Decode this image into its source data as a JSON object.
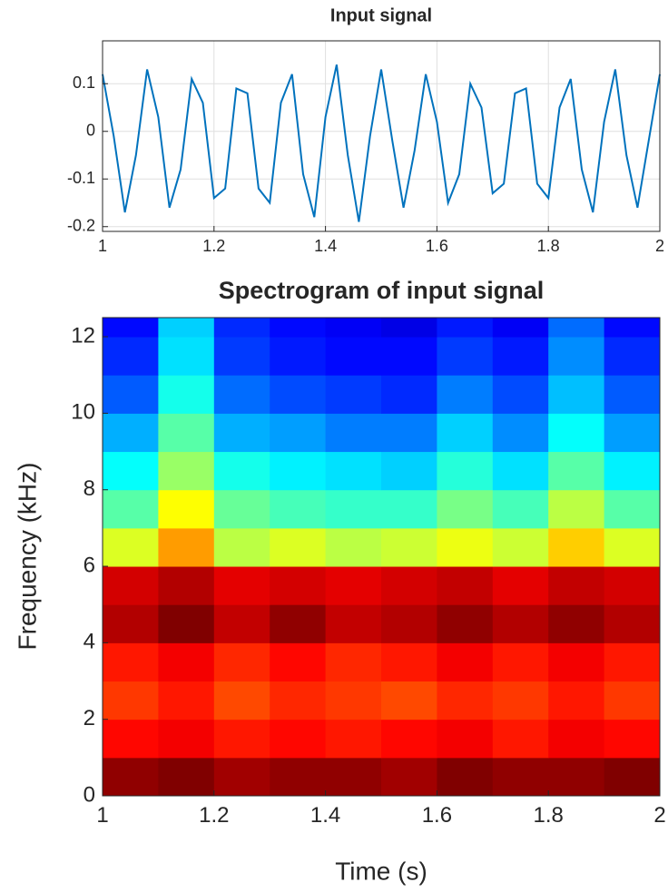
{
  "chart_data": [
    {
      "type": "line",
      "title": "Input signal",
      "x": [
        1,
        1.02,
        1.04,
        1.06,
        1.08,
        1.1,
        1.12,
        1.14,
        1.16,
        1.18,
        1.2,
        1.22,
        1.24,
        1.26,
        1.28,
        1.3,
        1.32,
        1.34,
        1.36,
        1.38,
        1.4,
        1.42,
        1.44,
        1.46,
        1.48,
        1.5,
        1.52,
        1.54,
        1.56,
        1.58,
        1.6,
        1.62,
        1.64,
        1.66,
        1.68,
        1.7,
        1.72,
        1.74,
        1.76,
        1.78,
        1.8,
        1.82,
        1.84,
        1.86,
        1.88,
        1.9,
        1.92,
        1.94,
        1.96,
        1.98,
        2
      ],
      "values": [
        0.12,
        -0.01,
        -0.17,
        -0.05,
        0.13,
        0.03,
        -0.16,
        -0.08,
        0.11,
        0.06,
        -0.14,
        -0.12,
        0.09,
        0.08,
        -0.12,
        -0.15,
        0.06,
        0.12,
        -0.09,
        -0.18,
        0.03,
        0.14,
        -0.05,
        -0.19,
        -0.01,
        0.13,
        -0.02,
        -0.16,
        -0.04,
        0.12,
        0.02,
        -0.15,
        -0.09,
        0.1,
        0.05,
        -0.13,
        -0.11,
        0.08,
        0.09,
        -0.11,
        -0.14,
        0.05,
        0.11,
        -0.08,
        -0.17,
        0.02,
        0.13,
        -0.05,
        -0.16,
        -0.02,
        0.12
      ],
      "color": "#0072bd",
      "xlim": [
        1,
        2
      ],
      "xticks": [
        1,
        1.2,
        1.4,
        1.6,
        1.8,
        2
      ],
      "ylim": [
        -0.21,
        0.19
      ],
      "yticks": [
        -0.2,
        -0.1,
        0,
        0.1
      ],
      "grid": true
    },
    {
      "type": "heatmap",
      "title": "Spectrogram of input signal",
      "xlabel": "Time (s)",
      "ylabel": "Frequency (kHz)",
      "colormap": "jet",
      "xbins": [
        1,
        1.1,
        1.2,
        1.3,
        1.4,
        1.5,
        1.6,
        1.7,
        1.8,
        1.9,
        2
      ],
      "ybins": [
        0,
        1,
        2,
        3,
        4,
        5,
        6,
        7,
        8,
        9,
        10,
        11,
        12,
        12.5
      ],
      "z": [
        [
          0.92,
          0.93,
          0.91,
          0.92,
          0.92,
          0.91,
          0.93,
          0.92,
          0.92,
          0.93
        ],
        [
          0.85,
          0.86,
          0.84,
          0.85,
          0.84,
          0.85,
          0.86,
          0.84,
          0.86,
          0.85
        ],
        [
          0.82,
          0.84,
          0.81,
          0.83,
          0.82,
          0.81,
          0.83,
          0.82,
          0.84,
          0.82
        ],
        [
          0.84,
          0.86,
          0.83,
          0.85,
          0.83,
          0.84,
          0.86,
          0.84,
          0.86,
          0.84
        ],
        [
          0.9,
          0.93,
          0.89,
          0.92,
          0.89,
          0.9,
          0.92,
          0.9,
          0.92,
          0.9
        ],
        [
          0.88,
          0.9,
          0.87,
          0.88,
          0.87,
          0.88,
          0.89,
          0.87,
          0.89,
          0.88
        ],
        [
          0.68,
          0.76,
          0.66,
          0.68,
          0.66,
          0.67,
          0.69,
          0.67,
          0.73,
          0.68
        ],
        [
          0.6,
          0.7,
          0.61,
          0.59,
          0.58,
          0.58,
          0.62,
          0.59,
          0.66,
          0.6
        ],
        [
          0.55,
          0.64,
          0.56,
          0.54,
          0.53,
          0.52,
          0.57,
          0.53,
          0.6,
          0.54
        ],
        [
          0.5,
          0.6,
          0.5,
          0.49,
          0.47,
          0.47,
          0.52,
          0.48,
          0.55,
          0.49
        ],
        [
          0.45,
          0.56,
          0.46,
          0.44,
          0.43,
          0.42,
          0.47,
          0.44,
          0.51,
          0.45
        ],
        [
          0.42,
          0.53,
          0.43,
          0.41,
          0.4,
          0.4,
          0.43,
          0.41,
          0.48,
          0.42
        ],
        [
          0.4,
          0.52,
          0.42,
          0.4,
          0.39,
          0.38,
          0.41,
          0.39,
          0.46,
          0.4
        ]
      ],
      "xlim": [
        1,
        2
      ],
      "xticks": [
        1,
        1.2,
        1.4,
        1.6,
        1.8,
        2
      ],
      "ylim": [
        0,
        12.5
      ],
      "yticks": [
        0,
        2,
        4,
        6,
        8,
        10,
        12
      ]
    }
  ]
}
